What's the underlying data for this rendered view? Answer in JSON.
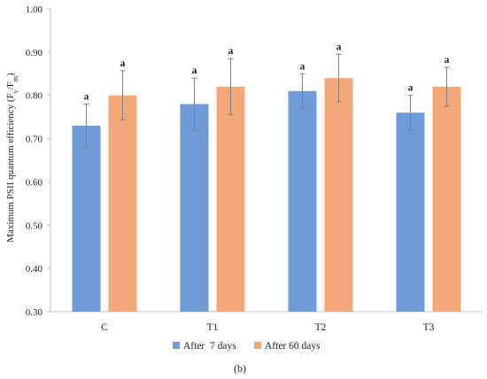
{
  "chart_data": {
    "type": "bar",
    "ylabel_main": "Maximum PSII quantum efficiency (F",
    "ylabel_sub1": "v",
    "ylabel_mid": "/F",
    "ylabel_sub2": "m",
    "ylabel_end": ")",
    "categories": [
      "C",
      "T1",
      "T2",
      "T3"
    ],
    "series": [
      {
        "name": "After  7 days",
        "color": "#6f9bd8",
        "values": [
          0.73,
          0.78,
          0.81,
          0.76
        ],
        "errors": [
          0.05,
          0.06,
          0.04,
          0.04
        ],
        "labels": [
          "a",
          "a",
          "a",
          "a"
        ]
      },
      {
        "name": "After 60 days",
        "color": "#f5a877",
        "values": [
          0.8,
          0.82,
          0.84,
          0.82
        ],
        "errors": [
          0.057,
          0.065,
          0.055,
          0.045
        ],
        "labels": [
          "a",
          "a",
          "a",
          "a"
        ]
      }
    ],
    "ylim": [
      0.3,
      1.0
    ],
    "yticks": [
      "0.30",
      "0.40",
      "0.50",
      "0.60",
      "0.70",
      "0.80",
      "0.90",
      "1.00"
    ],
    "grid": false,
    "legend_position": "bottom",
    "caption": "(b)"
  }
}
